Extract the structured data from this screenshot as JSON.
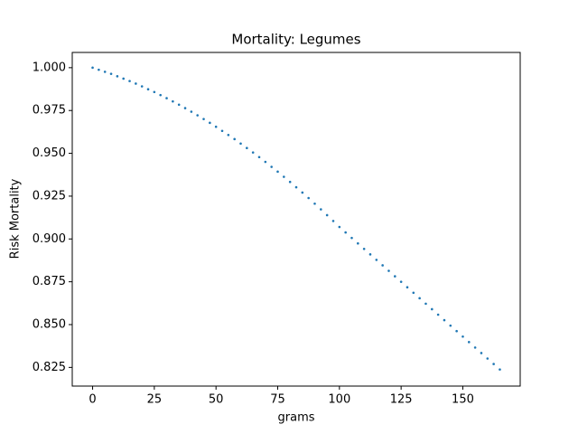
{
  "chart_data": {
    "type": "scatter",
    "title": "Mortality: Legumes",
    "x_label": "grams",
    "y_label": "Risk Mortality",
    "color": "#1f77b4",
    "x": [
      0,
      2.5,
      5,
      7.5,
      10,
      12.5,
      15,
      17.5,
      20,
      22.5,
      25,
      27.5,
      30,
      32.5,
      35,
      37.5,
      40,
      42.5,
      45,
      47.5,
      50,
      52.5,
      55,
      57.5,
      60,
      62.5,
      65,
      67.5,
      70,
      72.5,
      75,
      77.5,
      80,
      82.5,
      85,
      87.5,
      90,
      92.5,
      95,
      97.5,
      100,
      102.5,
      105,
      107.5,
      110,
      112.5,
      115,
      117.5,
      120,
      122.5,
      125,
      127.5,
      130,
      132.5,
      135,
      137.5,
      140,
      142.5,
      145,
      147.5,
      150,
      152.5,
      155,
      157.5,
      160,
      162.5,
      165
    ],
    "values": [
      1.0,
      0.9988,
      0.9976,
      0.9964,
      0.995,
      0.9936,
      0.9922,
      0.9907,
      0.9891,
      0.9874,
      0.9858,
      0.984,
      0.9822,
      0.9803,
      0.9784,
      0.9764,
      0.9743,
      0.9722,
      0.97,
      0.9678,
      0.9655,
      0.9631,
      0.9607,
      0.9583,
      0.9557,
      0.9531,
      0.9505,
      0.9478,
      0.945,
      0.9421,
      0.9393,
      0.9363,
      0.9333,
      0.9302,
      0.9271,
      0.9239,
      0.9206,
      0.9173,
      0.9139,
      0.9105,
      0.907,
      0.9038,
      0.9006,
      0.8974,
      0.8942,
      0.891,
      0.8878,
      0.8846,
      0.8814,
      0.8782,
      0.875,
      0.8718,
      0.8686,
      0.8654,
      0.8622,
      0.859,
      0.8558,
      0.8526,
      0.8494,
      0.8462,
      0.843,
      0.8398,
      0.8366,
      0.8334,
      0.8302,
      0.827,
      0.8238
    ],
    "xlim": [
      -8.25,
      173.25
    ],
    "xticks": [
      0,
      25,
      50,
      75,
      100,
      125,
      150
    ],
    "ylim": [
      0.8141,
      1.0089
    ],
    "yticks": [
      {
        "value": 0.825,
        "label": "0.825"
      },
      {
        "value": 0.85,
        "label": "0.850"
      },
      {
        "value": 0.875,
        "label": "0.875"
      },
      {
        "value": 0.9,
        "label": "0.900"
      },
      {
        "value": 0.925,
        "label": "0.925"
      },
      {
        "value": 0.95,
        "label": "0.950"
      },
      {
        "value": 0.975,
        "label": "0.975"
      },
      {
        "value": 1.0,
        "label": "1.000"
      }
    ],
    "grid": false
  }
}
